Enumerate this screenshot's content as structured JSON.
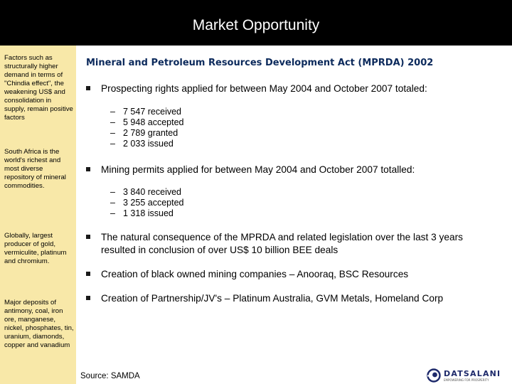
{
  "slide": {
    "title": "Market Opportunity",
    "heading": "Mineral and Petroleum Resources Development Act (MPRDA) 2002",
    "sidebar": [
      "Factors such as structurally higher demand in terms of \"Chindia effect\", the weakening US$ and consolidation in supply, remain positive factors",
      "South Africa is the world's richest and most diverse repository of mineral commodities.",
      "Globally, largest producer of gold, vermiculite, platinum and chromium.",
      "Major deposits of antimony, coal, iron ore, manganese, nickel, phosphates, tin, uranium, diamonds, copper and vanadium"
    ],
    "bullets": [
      {
        "text": "Prospecting rights applied for between May 2004 and October 2007 totaled:",
        "subitems": [
          "7 547 received",
          "5 948 accepted",
          "2 789 granted",
          "2 033 issued"
        ]
      },
      {
        "text": "Mining permits applied for between May 2004 and October 2007 totalled:",
        "subitems": [
          "3 840 received",
          "3 255 accepted",
          "1 318 issued"
        ]
      },
      {
        "text": "The natural consequence of the MPRDA and related legislation over the last 3 years resulted in conclusion of over US$ 10 billion BEE deals",
        "subitems": []
      },
      {
        "text": "Creation of black owned mining companies – Anooraq, BSC Resources",
        "subitems": []
      },
      {
        "text": "Creation of Partnership/JV's – Platinum Australia, GVM Metals, Homeland Corp",
        "subitems": []
      }
    ],
    "dash": "–",
    "source": "Source: SAMDA"
  },
  "logo": {
    "name": "DATSALANI",
    "tagline": "EMPOWERING FOR PROSPERITY"
  },
  "colors": {
    "title_bar": "#000000",
    "sidebar": "#f8e8a8",
    "heading": "#0c2a5c",
    "logo": "#1e2a6b"
  }
}
